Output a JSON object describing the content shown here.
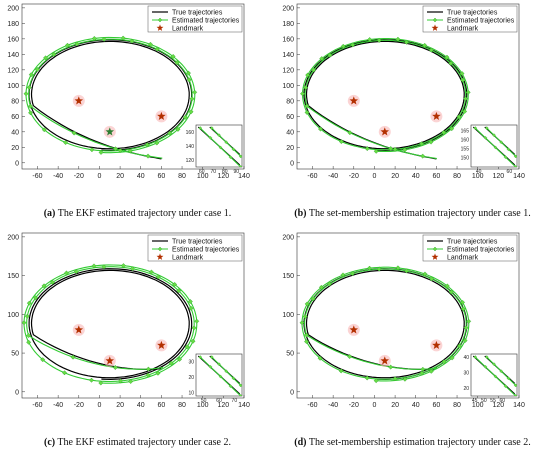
{
  "panels": [
    {
      "caption_label": "(a)",
      "caption_text": " The EKF estimated trajectory under case 1.",
      "chart_data": {
        "type": "line",
        "xlim": [
          -75,
          140
        ],
        "ylim": [
          -8,
          205
        ],
        "xticks": [
          -60,
          -40,
          -20,
          0,
          20,
          40,
          60,
          80,
          100,
          120,
          140
        ],
        "yticks": [
          0,
          20,
          40,
          60,
          80,
          100,
          120,
          140,
          160,
          180,
          200
        ],
        "legend_entries": [
          "True trajectories",
          "Estimated trajectories",
          "Landmark"
        ],
        "legend_placement": "top-right",
        "landmarks": [
          {
            "x": -20,
            "y": 80
          },
          {
            "x": 60,
            "y": 60
          },
          {
            "x": 10,
            "y": 40,
            "highlight": true
          }
        ],
        "trajectory": {
          "center_x": 10,
          "center_y": 88,
          "radius_x": 80,
          "radius_y": 72,
          "turns": 2,
          "start_x": 0,
          "start_y": 0,
          "end_x": 60,
          "end_y": 5,
          "estimate_offset": 3,
          "marker_every": 20
        },
        "inset": {
          "xlim": [
            55,
            95
          ],
          "ylim": [
            110,
            170
          ],
          "xticks": [
            60,
            70,
            80,
            90
          ],
          "yticks": [
            120,
            140,
            160
          ]
        },
        "grid": false
      }
    },
    {
      "caption_label": "(b)",
      "caption_text": " The set-membership estimation trajectory under case 1.",
      "chart_data": {
        "type": "line",
        "xlim": [
          -75,
          140
        ],
        "ylim": [
          -8,
          205
        ],
        "xticks": [
          -60,
          -40,
          -20,
          0,
          20,
          40,
          60,
          80,
          100,
          120,
          140
        ],
        "yticks": [
          0,
          20,
          40,
          60,
          80,
          100,
          120,
          140,
          160,
          180,
          200
        ],
        "legend_entries": [
          "True trajectories",
          "Estimated trajectories",
          "Landmark"
        ],
        "legend_placement": "top-right",
        "landmarks": [
          {
            "x": -20,
            "y": 80
          },
          {
            "x": 60,
            "y": 60
          },
          {
            "x": 10,
            "y": 40
          }
        ],
        "trajectory": {
          "center_x": 10,
          "center_y": 88,
          "radius_x": 80,
          "radius_y": 72,
          "turns": 2,
          "start_x": 0,
          "start_y": 0,
          "end_x": 60,
          "end_y": 5,
          "estimate_offset": 1.5,
          "marker_every": 20
        },
        "inset": {
          "xlim": [
            35,
            65
          ],
          "ylim": [
            145,
            168
          ],
          "xticks": [
            40,
            60
          ],
          "yticks": [
            150,
            155,
            160,
            165
          ]
        },
        "grid": false
      }
    },
    {
      "caption_label": "(c)",
      "caption_text": " The EKF estimated trajectory under case 2.",
      "chart_data": {
        "type": "line",
        "xlim": [
          -75,
          140
        ],
        "ylim": [
          -8,
          205
        ],
        "xticks": [
          -60,
          -40,
          -20,
          0,
          20,
          40,
          60,
          80,
          100,
          120,
          140
        ],
        "yticks": [
          0,
          50,
          100,
          150,
          200
        ],
        "legend_entries": [
          "True trajectories",
          "Estimated trajectories",
          "Landmark"
        ],
        "legend_placement": "top-right",
        "landmarks": [
          {
            "x": -20,
            "y": 80
          },
          {
            "x": 60,
            "y": 60
          },
          {
            "x": 10,
            "y": 40
          }
        ],
        "trajectory": {
          "center_x": 10,
          "center_y": 88,
          "radius_x": 80,
          "radius_y": 72,
          "turns": 2,
          "start_x": 0,
          "start_y": 0,
          "end_x": 60,
          "end_y": 30,
          "estimate_offset": 5,
          "marker_every": 18
        },
        "inset": {
          "xlim": [
            45,
            75
          ],
          "ylim": [
            8,
            35
          ],
          "xticks": [
            50,
            60,
            70
          ],
          "yticks": [
            10,
            20,
            30
          ]
        },
        "grid": false
      }
    },
    {
      "caption_label": "(d)",
      "caption_text": " The set-membership estimation trajectory under case 2.",
      "chart_data": {
        "type": "line",
        "xlim": [
          -75,
          140
        ],
        "ylim": [
          -8,
          205
        ],
        "xticks": [
          -60,
          -40,
          -20,
          0,
          20,
          40,
          60,
          80,
          100,
          120,
          140
        ],
        "yticks": [
          0,
          50,
          100,
          150,
          200
        ],
        "legend_entries": [
          "True trajectories",
          "Estimated trajectories",
          "Landmark"
        ],
        "legend_placement": "top-right",
        "landmarks": [
          {
            "x": -20,
            "y": 80
          },
          {
            "x": 60,
            "y": 60
          },
          {
            "x": 10,
            "y": 40
          }
        ],
        "trajectory": {
          "center_x": 10,
          "center_y": 88,
          "radius_x": 80,
          "radius_y": 72,
          "turns": 2,
          "start_x": 0,
          "start_y": 0,
          "end_x": 60,
          "end_y": 30,
          "estimate_offset": 2,
          "marker_every": 18
        },
        "inset": {
          "xlim": [
            43,
            68
          ],
          "ylim": [
            15,
            42
          ],
          "xticks": [
            45,
            50,
            55,
            60
          ],
          "yticks": [
            20,
            30,
            40
          ]
        },
        "grid": false
      }
    }
  ],
  "colors": {
    "true_line": "#000000",
    "estimate_line": "#33cc33",
    "marker_fill": "#66dd44",
    "landmark": "#b33000",
    "landmark_glow": "#f7b0b0"
  }
}
